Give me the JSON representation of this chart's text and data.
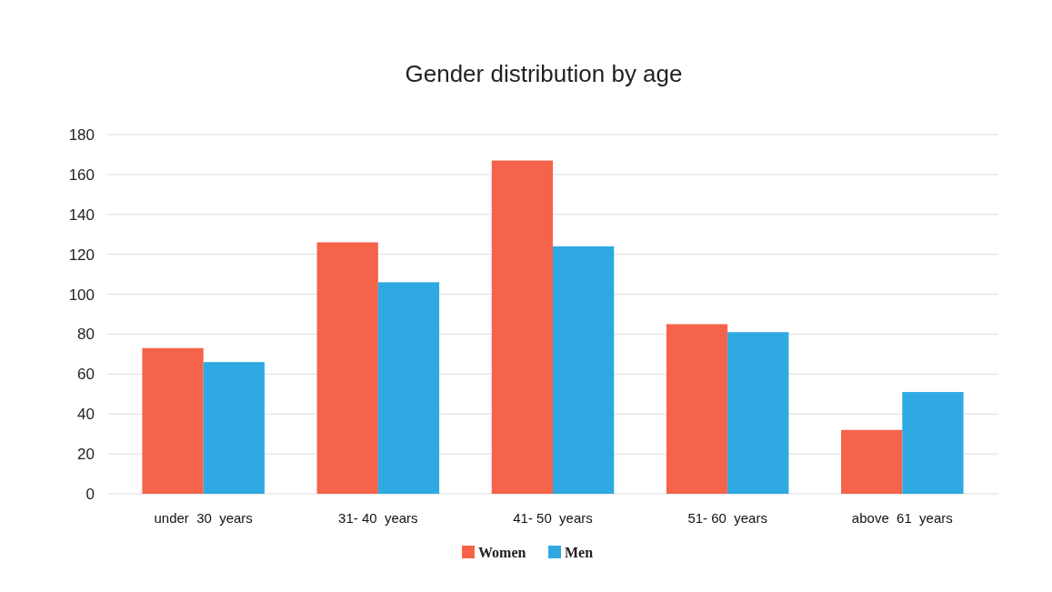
{
  "chart_data": {
    "type": "bar",
    "title": "Gender distribution by age",
    "categories": [
      "under  30  years",
      "31- 40  years",
      "41- 50  years",
      "51- 60  years",
      "above  61  years"
    ],
    "series": [
      {
        "name": "Women",
        "color": "#f4634a",
        "values": [
          73,
          126,
          167,
          85,
          32
        ]
      },
      {
        "name": "Men",
        "color": "#2fa9e1",
        "values": [
          66,
          106,
          124,
          81,
          51
        ]
      }
    ],
    "ylim": [
      0,
      180
    ],
    "yticks": [
      0,
      20,
      40,
      60,
      80,
      100,
      120,
      140,
      160,
      180
    ],
    "grid": "y",
    "legend": "bottom"
  }
}
